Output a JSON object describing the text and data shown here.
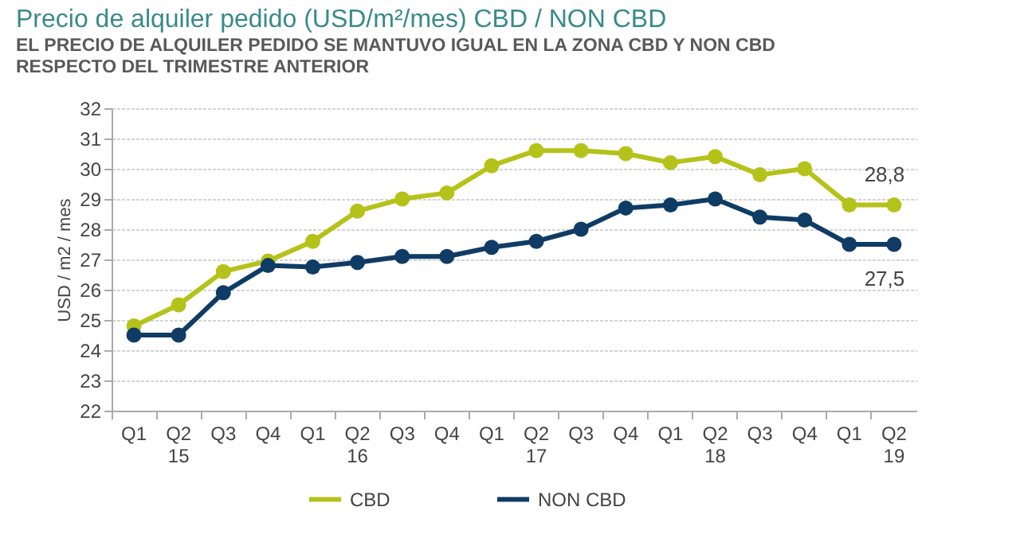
{
  "chart_data": {
    "type": "line",
    "title": "Precio de alquiler pedido (USD/m²/mes) CBD / NON CBD",
    "subtitle": "EL PRECIO DE ALQUILER PEDIDO SE MANTUVO IGUAL EN LA ZONA CBD Y NON CBD RESPECTO DEL TRIMESTRE ANTERIOR",
    "ylabel": "USD / m2 / mes",
    "categories": [
      "Q1",
      "Q2\n15",
      "Q3",
      "Q4",
      "Q1",
      "Q2\n16",
      "Q3",
      "Q4",
      "Q1",
      "Q2\n17",
      "Q3",
      "Q4",
      "Q1",
      "Q2\n18",
      "Q3",
      "Q4",
      "Q1",
      "Q2\n19"
    ],
    "series": [
      {
        "name": "CBD",
        "color": "#b5c21a",
        "values": [
          24.8,
          25.5,
          26.6,
          26.95,
          27.6,
          28.6,
          29.0,
          29.2,
          30.1,
          30.6,
          30.6,
          30.5,
          30.2,
          30.4,
          29.8,
          30.0,
          28.8,
          28.8
        ],
        "value_labels": [
          null,
          null,
          null,
          null,
          null,
          null,
          null,
          null,
          null,
          null,
          null,
          null,
          null,
          null,
          null,
          null,
          null,
          "28,8"
        ]
      },
      {
        "name": "NON CBD",
        "color": "#0f3c64",
        "values": [
          24.5,
          24.5,
          25.9,
          26.8,
          26.75,
          26.9,
          27.1,
          27.1,
          27.4,
          27.6,
          28.0,
          28.7,
          28.8,
          29.0,
          28.4,
          28.3,
          27.5,
          27.5
        ],
        "value_labels": [
          null,
          null,
          null,
          null,
          null,
          null,
          null,
          null,
          null,
          null,
          null,
          null,
          null,
          null,
          null,
          null,
          null,
          "27,5"
        ]
      }
    ],
    "ylim": [
      22,
      32
    ],
    "yticks": [
      22,
      23,
      24,
      25,
      26,
      27,
      28,
      29,
      30,
      31,
      32
    ],
    "grid": "y",
    "legend": "bottom",
    "marker": "circle",
    "line_style": "solid"
  }
}
